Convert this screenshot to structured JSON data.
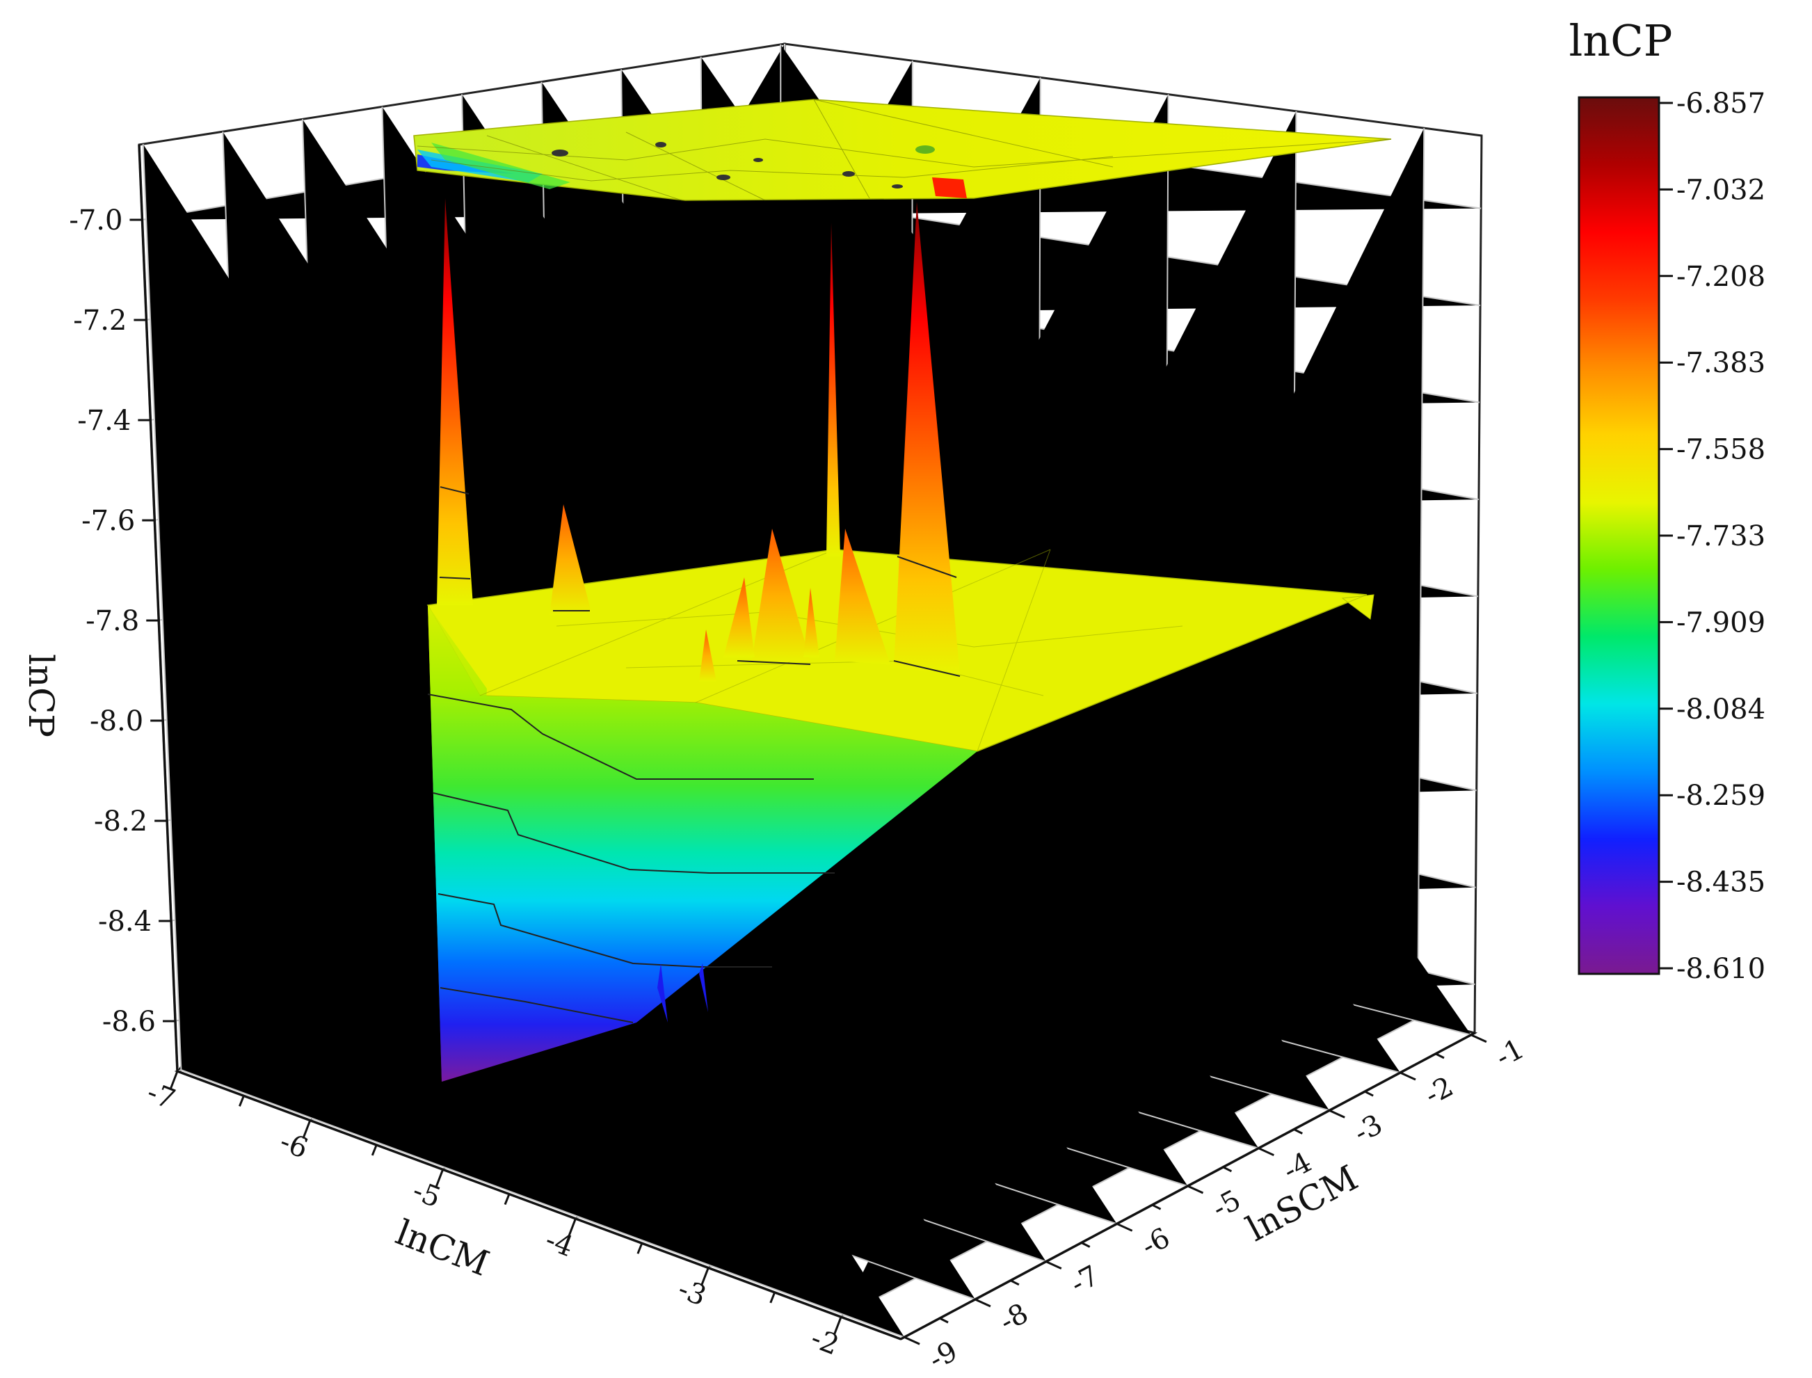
{
  "chart_data": {
    "type": "surface3d",
    "zlabel": "lnCP",
    "xlabel": "lnCM",
    "ylabel": "lnSCM",
    "colorbar_title": "lnCP",
    "x_ticks": [
      "-7",
      "-6",
      "-5",
      "-4",
      "-3",
      "-2"
    ],
    "y_ticks": [
      "-1",
      "-2",
      "-3",
      "-4",
      "-5",
      "-6",
      "-7",
      "-8",
      "-9"
    ],
    "z_ticks": [
      "-7.0",
      "-7.2",
      "-7.4",
      "-7.6",
      "-7.8",
      "-8.0",
      "-8.2",
      "-8.4",
      "-8.6"
    ],
    "xlim": [
      -7,
      -2
    ],
    "ylim": [
      -9,
      -1
    ],
    "zlim": [
      -8.7,
      -6.85
    ],
    "grid": true,
    "colorbar_ticks": [
      "-6.857",
      "-7.032",
      "-7.208",
      "-7.383",
      "-7.558",
      "-7.733",
      "-7.909",
      "-8.084",
      "-8.259",
      "-8.435",
      "-8.610"
    ],
    "colormap": [
      "#6a0d0d",
      "#b00000",
      "#ff0000",
      "#ff3b00",
      "#ff8c00",
      "#ffd200",
      "#e8f500",
      "#6ef000",
      "#00e86a",
      "#00e6e6",
      "#0090ff",
      "#1020ff",
      "#6010d0",
      "#7a1a90"
    ],
    "surfaces": [
      {
        "level": "upper",
        "typical_lnCP": -6.95
      },
      {
        "level": "lower",
        "plateau_lnCP": -7.78,
        "min_lnCP": -8.61,
        "peak_lnCP": -6.95
      }
    ]
  }
}
